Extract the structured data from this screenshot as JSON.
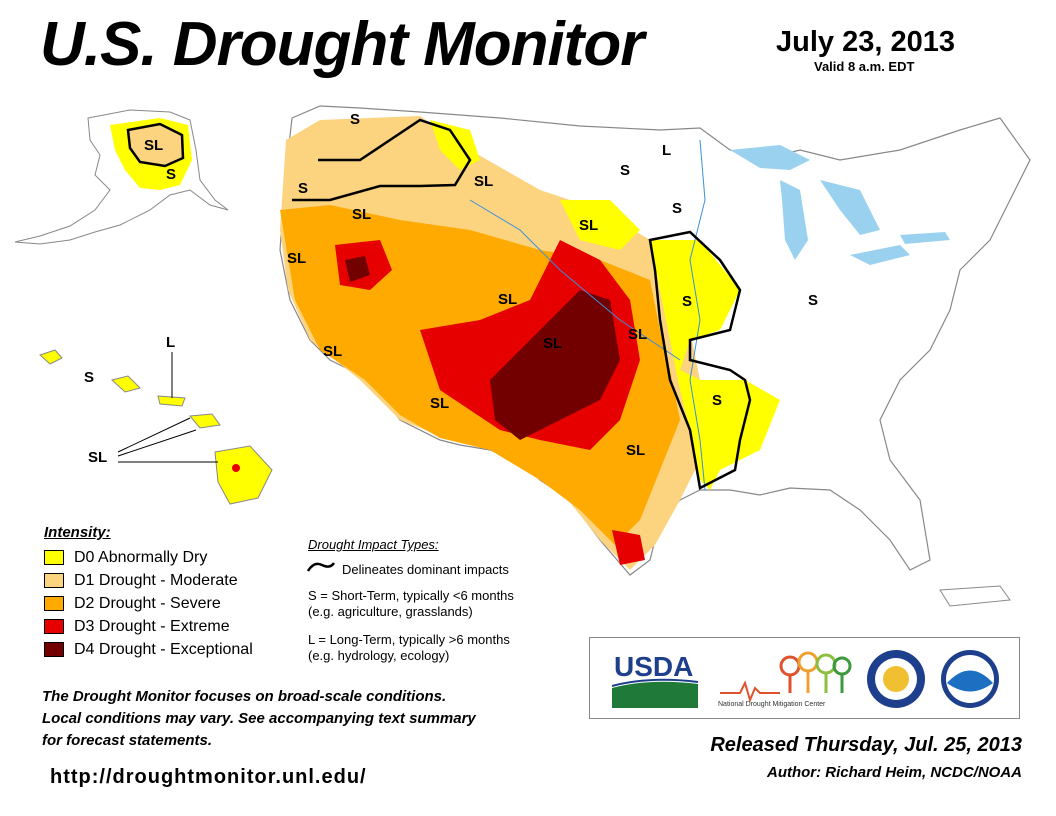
{
  "header": {
    "title": "U.S. Drought Monitor",
    "date": "July 23, 2013",
    "valid": "Valid 8 a.m. EDT"
  },
  "map": {
    "labels": [
      "SL",
      "S",
      "S",
      "S",
      "SL",
      "SL",
      "SL",
      "L",
      "S",
      "S",
      "SL",
      "SL",
      "SL",
      "SL",
      "S",
      "SL",
      "S",
      "S",
      "SL",
      "SL",
      "SL",
      "L",
      "S",
      "SL"
    ],
    "colors": {
      "d0": "#ffff00",
      "d1": "#fcd37f",
      "d2": "#ffaa00",
      "d3": "#e60000",
      "d4": "#730000",
      "water": "#9ad1ef",
      "border": "#888888"
    }
  },
  "legend": {
    "title": "Intensity:",
    "items": [
      {
        "label": "D0 Abnormally Dry",
        "color": "#ffff00"
      },
      {
        "label": "D1 Drought - Moderate",
        "color": "#fcd37f"
      },
      {
        "label": "D2 Drought - Severe",
        "color": "#ffaa00"
      },
      {
        "label": "D3 Drought - Extreme",
        "color": "#e60000"
      },
      {
        "label": "D4 Drought - Exceptional",
        "color": "#730000"
      }
    ]
  },
  "impacts": {
    "title": "Drought Impact Types:",
    "line": "Delineates dominant impacts",
    "short": "S = Short-Term, typically <6 months",
    "short_eg": "(e.g. agriculture, grasslands)",
    "long": "L = Long-Term, typically >6 months",
    "long_eg": "(e.g. hydrology, ecology)"
  },
  "note": {
    "line1": "The Drought Monitor focuses on broad-scale conditions.",
    "line2": "Local conditions may vary. See accompanying text summary",
    "line3": "for forecast statements."
  },
  "url": "http://droughtmonitor.unl.edu/",
  "logos": {
    "usda": "USDA",
    "ndmc": "National Drought Mitigation Center"
  },
  "footer": {
    "released": "Released Thursday, Jul. 25, 2013",
    "author": "Author: Richard Heim, NCDC/NOAA"
  }
}
